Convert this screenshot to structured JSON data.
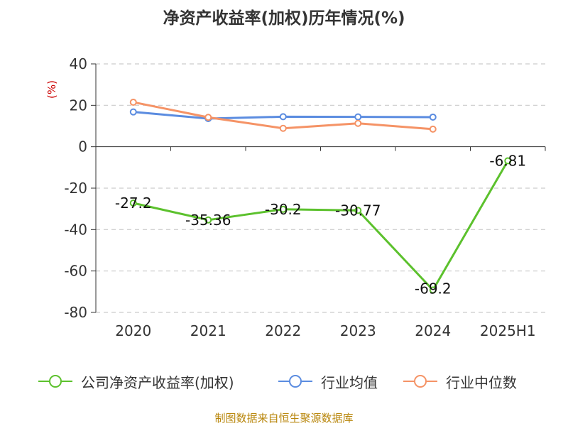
{
  "title": "净资产收益率(加权)历年情况(%)",
  "source": "制图数据来自恒生聚源数据库",
  "colors": {
    "company": "#5cc12d",
    "industry_avg": "#5b8ce0",
    "industry_median": "#f59366",
    "grid": "#cccccc",
    "axis": "#333333",
    "unit": "#cc0000",
    "source": "#b8860b"
  },
  "chart_data": {
    "type": "line",
    "title": "净资产收益率(加权)历年情况(%)",
    "ylabel": "(%)",
    "categories": [
      "2020",
      "2021",
      "2022",
      "2023",
      "2024",
      "2025H1"
    ],
    "ylim": [
      -80,
      40
    ],
    "yticks": [
      -80,
      -60,
      -40,
      -20,
      0,
      20,
      40
    ],
    "grid": "horizontal dashed",
    "legend_position": "bottom",
    "series": [
      {
        "name": "公司净资产收益率(加权)",
        "color": "#5cc12d",
        "values": [
          -27.2,
          -35.36,
          -30.2,
          -30.77,
          -69.2,
          -6.81
        ],
        "labels": [
          "-27.2",
          "-35.36",
          "-30.2",
          "-30.77",
          "-69.2",
          "-6.81"
        ]
      },
      {
        "name": "行业均值",
        "color": "#5b8ce0",
        "values": [
          16.8,
          13.6,
          14.5,
          14.4,
          14.3,
          null
        ]
      },
      {
        "name": "行业中位数",
        "color": "#f59366",
        "values": [
          21.5,
          14.2,
          8.9,
          11.3,
          8.5,
          null
        ]
      }
    ]
  }
}
